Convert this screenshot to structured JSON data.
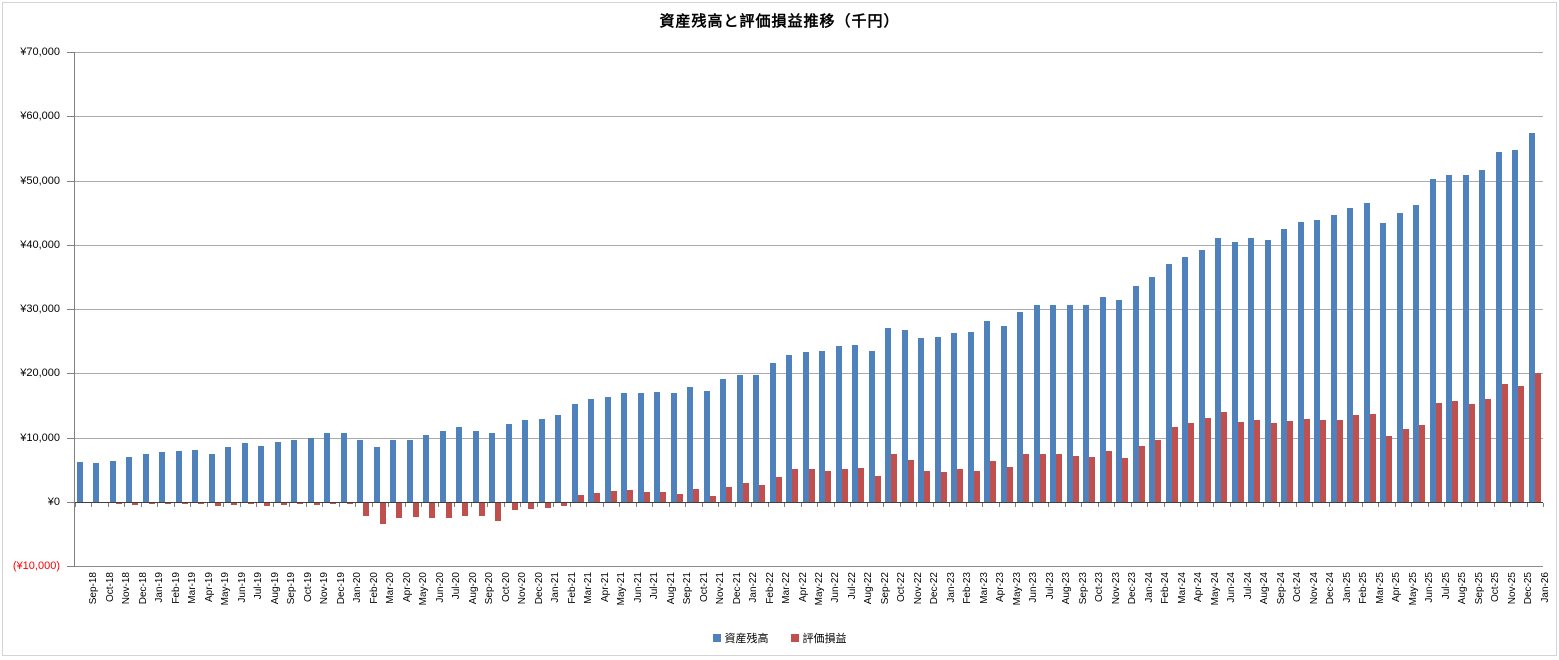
{
  "window": {
    "background": "#FFFFFF",
    "frame_border_color": "#D4D4D4"
  },
  "chart_data": {
    "type": "bar",
    "title": "資産残高と評価損益推移（千円）",
    "unit_note": "values in thousand yen (千円)",
    "grid": true,
    "legend_position": "bottom",
    "ylim": [
      -10000,
      70000
    ],
    "y_tick_interval": 10000,
    "y_tick_labels": [
      "¥70,000",
      "¥60,000",
      "¥50,000",
      "¥40,000",
      "¥30,000",
      "¥20,000",
      "¥10,000",
      "¥0",
      "(¥10,000)"
    ],
    "negative_label_color": "#FF0000",
    "axis_color": "#808080",
    "gridline_color": "#ABABAB",
    "zero_line_color": "#404040",
    "bottom_line_color": "#8C8C8C",
    "categories": [
      "Sep-18",
      "Oct-18",
      "Nov-18",
      "Dec-18",
      "Jan-19",
      "Feb-19",
      "Mar-19",
      "Apr-19",
      "May-19",
      "Jun-19",
      "Jul-19",
      "Aug-19",
      "Sep-19",
      "Oct-19",
      "Nov-19",
      "Dec-19",
      "Jan-20",
      "Feb-20",
      "Mar-20",
      "Apr-20",
      "May-20",
      "Jun-20",
      "Jul-20",
      "Aug-20",
      "Sep-20",
      "Oct-20",
      "Nov-20",
      "Dec-20",
      "Jan-21",
      "Feb-21",
      "Mar-21",
      "Apr-21",
      "May-21",
      "Jun-21",
      "Jul-21",
      "Aug-21",
      "Sep-21",
      "Oct-21",
      "Nov-21",
      "Dec-21",
      "Jan-22",
      "Feb-22",
      "Mar-22",
      "Apr-22",
      "May-22",
      "Jun-22",
      "Jul-22",
      "Aug-22",
      "Sep-22",
      "Oct-22",
      "Nov-22",
      "Dec-22",
      "Jan-23",
      "Feb-23",
      "Mar-23",
      "Apr-23",
      "May-23",
      "Jun-23",
      "Jul-23",
      "Aug-23",
      "Sep-23",
      "Oct-23",
      "Nov-23",
      "Dec-23",
      "Jan-24",
      "Feb-24",
      "Mar-24",
      "Apr-24",
      "May-24",
      "Jun-24",
      "Jul-24",
      "Aug-24",
      "Sep-24",
      "Oct-24",
      "Nov-24",
      "Dec-24",
      "Jan-25",
      "Feb-25",
      "Mar-25",
      "Apr-25",
      "May-25",
      "Jun-25",
      "Jul-25",
      "Aug-25",
      "Sep-25",
      "Oct-25",
      "Nov-25",
      "Dec-25",
      "Jan-26"
    ],
    "series": [
      {
        "name": "資産残高",
        "color": "#4F81BD",
        "values": [
          6200,
          6100,
          6400,
          7000,
          7500,
          7800,
          8000,
          8100,
          7500,
          8500,
          9200,
          8700,
          9300,
          9700,
          10000,
          10700,
          10700,
          9600,
          8500,
          9600,
          9600,
          10400,
          11000,
          11600,
          11100,
          10800,
          12200,
          12700,
          12900,
          13600,
          15300,
          16000,
          16400,
          16900,
          16900,
          17100,
          16900,
          17900,
          17200,
          19100,
          19800,
          19800,
          21600,
          22900,
          23300,
          23500,
          24300,
          24500,
          23500,
          27100,
          26700,
          25500,
          25600,
          26300,
          26500,
          28100,
          27400,
          29600,
          30600,
          30700,
          30700,
          30600,
          31900,
          31400,
          33600,
          35000,
          37000,
          38100,
          39200,
          41100,
          40400,
          41100,
          40800,
          42500,
          43500,
          43900,
          44600,
          45800,
          46500,
          43400,
          44900,
          46200,
          50200,
          50800,
          50900,
          51700,
          54400,
          54800,
          57400
        ]
      },
      {
        "name": "評価損益",
        "color": "#C0504D",
        "values": [
          0,
          0,
          -100,
          -350,
          -200,
          -150,
          -100,
          -50,
          -500,
          -250,
          -100,
          -450,
          -300,
          -150,
          -250,
          -100,
          -150,
          -2000,
          -3300,
          -2300,
          -2200,
          -2300,
          -2300,
          -2000,
          -2000,
          -2800,
          -1100,
          -1000,
          -800,
          -500,
          1100,
          1400,
          1700,
          1900,
          1600,
          1500,
          1200,
          2000,
          1000,
          2400,
          2900,
          2600,
          3900,
          5100,
          5200,
          4800,
          5100,
          5300,
          4100,
          7400,
          6500,
          4800,
          4600,
          5200,
          4800,
          6400,
          5500,
          7400,
          7500,
          7500,
          7200,
          7000,
          7900,
          6800,
          8700,
          9600,
          11600,
          12300,
          13000,
          14000,
          12400,
          12800,
          12300,
          12600,
          12900,
          12700,
          12700,
          13500,
          13700,
          10200,
          11400,
          12000,
          15400,
          15700,
          15300,
          16000,
          18300,
          18100,
          20100
        ]
      }
    ]
  }
}
